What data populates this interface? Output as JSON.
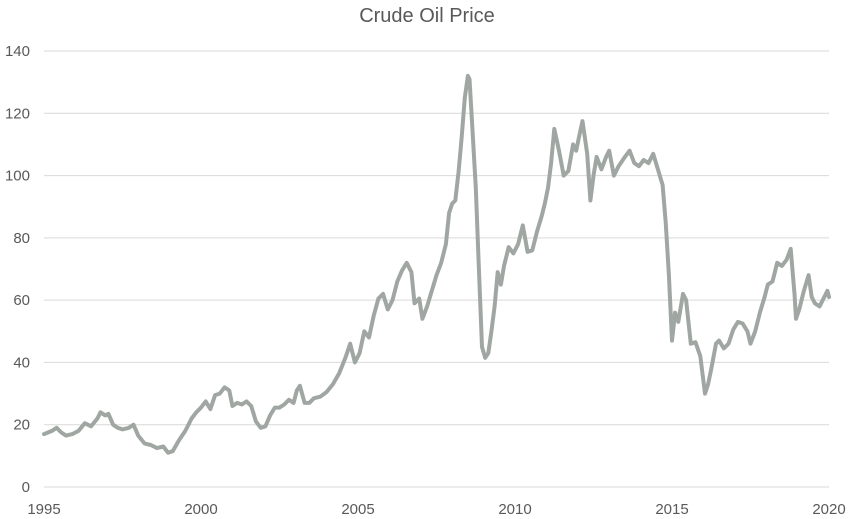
{
  "chart_data": {
    "type": "line",
    "title": "Crude Oil Price",
    "xlabel": "",
    "ylabel": "",
    "xlim": [
      1995,
      2020
    ],
    "ylim": [
      0,
      140
    ],
    "x_ticks": [
      1995,
      2000,
      2005,
      2010,
      2015,
      2020
    ],
    "y_ticks": [
      0,
      20,
      40,
      60,
      80,
      100,
      120,
      140
    ],
    "grid": "horizontal",
    "legend": "none",
    "line_color": "#a0a7a3",
    "grid_color": "#d9d9d9",
    "series": [
      {
        "values": [
          [
            1995.0,
            17.0
          ],
          [
            1995.25,
            18.0
          ],
          [
            1995.4,
            19.0
          ],
          [
            1995.55,
            17.5
          ],
          [
            1995.7,
            16.5
          ],
          [
            1995.9,
            17.0
          ],
          [
            1996.1,
            18.0
          ],
          [
            1996.3,
            20.5
          ],
          [
            1996.5,
            19.5
          ],
          [
            1996.7,
            22.0
          ],
          [
            1996.8,
            24.0
          ],
          [
            1996.95,
            23.0
          ],
          [
            1997.05,
            23.5
          ],
          [
            1997.2,
            20.0
          ],
          [
            1997.35,
            19.0
          ],
          [
            1997.5,
            18.5
          ],
          [
            1997.7,
            19.0
          ],
          [
            1997.85,
            20.0
          ],
          [
            1998.0,
            16.5
          ],
          [
            1998.2,
            14.0
          ],
          [
            1998.4,
            13.5
          ],
          [
            1998.6,
            12.5
          ],
          [
            1998.8,
            13.0
          ],
          [
            1998.95,
            11.0
          ],
          [
            1999.1,
            11.5
          ],
          [
            1999.3,
            15.0
          ],
          [
            1999.5,
            18.0
          ],
          [
            1999.7,
            22.0
          ],
          [
            1999.85,
            24.0
          ],
          [
            2000.0,
            25.5
          ],
          [
            2000.15,
            27.5
          ],
          [
            2000.3,
            25.0
          ],
          [
            2000.45,
            29.5
          ],
          [
            2000.6,
            30.0
          ],
          [
            2000.75,
            32.0
          ],
          [
            2000.9,
            31.0
          ],
          [
            2001.0,
            26.0
          ],
          [
            2001.15,
            27.0
          ],
          [
            2001.3,
            26.5
          ],
          [
            2001.45,
            27.5
          ],
          [
            2001.6,
            26.0
          ],
          [
            2001.75,
            21.0
          ],
          [
            2001.9,
            19.0
          ],
          [
            2002.05,
            19.5
          ],
          [
            2002.2,
            23.0
          ],
          [
            2002.35,
            25.5
          ],
          [
            2002.5,
            25.5
          ],
          [
            2002.65,
            26.5
          ],
          [
            2002.8,
            28.0
          ],
          [
            2002.95,
            27.0
          ],
          [
            2003.05,
            31.0
          ],
          [
            2003.15,
            32.5
          ],
          [
            2003.3,
            27.0
          ],
          [
            2003.45,
            27.0
          ],
          [
            2003.6,
            28.5
          ],
          [
            2003.8,
            29.0
          ],
          [
            2004.0,
            30.5
          ],
          [
            2004.2,
            33.0
          ],
          [
            2004.4,
            36.5
          ],
          [
            2004.6,
            41.5
          ],
          [
            2004.75,
            46.0
          ],
          [
            2004.9,
            40.0
          ],
          [
            2005.05,
            43.0
          ],
          [
            2005.2,
            50.0
          ],
          [
            2005.35,
            48.0
          ],
          [
            2005.5,
            55.0
          ],
          [
            2005.65,
            60.5
          ],
          [
            2005.8,
            62.0
          ],
          [
            2005.95,
            57.0
          ],
          [
            2006.1,
            60.0
          ],
          [
            2006.25,
            66.0
          ],
          [
            2006.4,
            69.5
          ],
          [
            2006.55,
            72.0
          ],
          [
            2006.7,
            69.0
          ],
          [
            2006.8,
            59.0
          ],
          [
            2006.95,
            60.5
          ],
          [
            2007.05,
            54.0
          ],
          [
            2007.2,
            58.0
          ],
          [
            2007.35,
            63.0
          ],
          [
            2007.5,
            68.0
          ],
          [
            2007.65,
            72.0
          ],
          [
            2007.8,
            78.0
          ],
          [
            2007.9,
            88.0
          ],
          [
            2008.0,
            91.0
          ],
          [
            2008.1,
            92.0
          ],
          [
            2008.2,
            101.0
          ],
          [
            2008.3,
            112.0
          ],
          [
            2008.4,
            125.0
          ],
          [
            2008.5,
            132.0
          ],
          [
            2008.55,
            131.0
          ],
          [
            2008.65,
            114.0
          ],
          [
            2008.75,
            96.0
          ],
          [
            2008.85,
            70.0
          ],
          [
            2008.95,
            45.0
          ],
          [
            2009.05,
            41.5
          ],
          [
            2009.15,
            43.0
          ],
          [
            2009.25,
            50.0
          ],
          [
            2009.35,
            58.0
          ],
          [
            2009.45,
            69.0
          ],
          [
            2009.55,
            65.0
          ],
          [
            2009.65,
            71.0
          ],
          [
            2009.8,
            77.0
          ],
          [
            2009.95,
            75.0
          ],
          [
            2010.1,
            78.0
          ],
          [
            2010.25,
            84.0
          ],
          [
            2010.4,
            75.5
          ],
          [
            2010.55,
            76.0
          ],
          [
            2010.7,
            82.0
          ],
          [
            2010.85,
            87.0
          ],
          [
            2010.95,
            91.0
          ],
          [
            2011.05,
            96.0
          ],
          [
            2011.15,
            104.0
          ],
          [
            2011.25,
            115.0
          ],
          [
            2011.4,
            108.0
          ],
          [
            2011.55,
            100.0
          ],
          [
            2011.7,
            101.5
          ],
          [
            2011.85,
            110.0
          ],
          [
            2011.95,
            108.0
          ],
          [
            2012.05,
            113.0
          ],
          [
            2012.15,
            117.5
          ],
          [
            2012.3,
            107.0
          ],
          [
            2012.4,
            92.0
          ],
          [
            2012.5,
            100.0
          ],
          [
            2012.6,
            106.0
          ],
          [
            2012.75,
            102.0
          ],
          [
            2012.9,
            106.0
          ],
          [
            2013.0,
            108.0
          ],
          [
            2013.15,
            100.0
          ],
          [
            2013.3,
            103.0
          ],
          [
            2013.5,
            106.0
          ],
          [
            2013.65,
            108.0
          ],
          [
            2013.8,
            104.0
          ],
          [
            2013.95,
            103.0
          ],
          [
            2014.1,
            105.0
          ],
          [
            2014.25,
            104.0
          ],
          [
            2014.4,
            107.0
          ],
          [
            2014.55,
            102.0
          ],
          [
            2014.7,
            97.0
          ],
          [
            2014.8,
            85.0
          ],
          [
            2014.9,
            68.0
          ],
          [
            2015.0,
            47.0
          ],
          [
            2015.1,
            56.0
          ],
          [
            2015.2,
            53.0
          ],
          [
            2015.35,
            62.0
          ],
          [
            2015.45,
            60.0
          ],
          [
            2015.6,
            46.0
          ],
          [
            2015.75,
            46.5
          ],
          [
            2015.9,
            42.0
          ],
          [
            2016.05,
            30.0
          ],
          [
            2016.15,
            33.0
          ],
          [
            2016.25,
            38.0
          ],
          [
            2016.4,
            46.0
          ],
          [
            2016.5,
            47.0
          ],
          [
            2016.65,
            44.5
          ],
          [
            2016.8,
            46.0
          ],
          [
            2016.95,
            50.5
          ],
          [
            2017.1,
            53.0
          ],
          [
            2017.25,
            52.5
          ],
          [
            2017.4,
            50.0
          ],
          [
            2017.5,
            46.0
          ],
          [
            2017.65,
            50.0
          ],
          [
            2017.8,
            56.0
          ],
          [
            2017.95,
            61.0
          ],
          [
            2018.05,
            65.0
          ],
          [
            2018.2,
            66.0
          ],
          [
            2018.35,
            72.0
          ],
          [
            2018.5,
            71.0
          ],
          [
            2018.65,
            73.0
          ],
          [
            2018.78,
            76.5
          ],
          [
            2018.9,
            62.0
          ],
          [
            2018.95,
            54.0
          ],
          [
            2019.05,
            57.0
          ],
          [
            2019.2,
            63.0
          ],
          [
            2019.35,
            68.0
          ],
          [
            2019.45,
            61.0
          ],
          [
            2019.55,
            59.0
          ],
          [
            2019.7,
            58.0
          ],
          [
            2019.8,
            60.0
          ],
          [
            2019.95,
            63.0
          ],
          [
            2020.0,
            61.0
          ]
        ]
      }
    ]
  }
}
